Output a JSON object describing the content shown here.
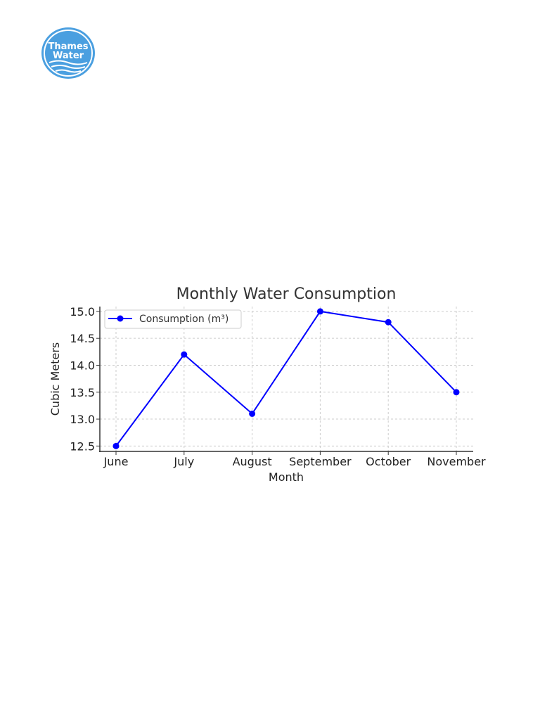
{
  "logo": {
    "line1": "Thames",
    "line2": "Water",
    "color": "#4a9fe0"
  },
  "chart_data": {
    "type": "line",
    "title": "Monthly Water Consumption",
    "xlabel": "Month",
    "ylabel": "Cubic Meters",
    "categories": [
      "June",
      "July",
      "August",
      "September",
      "October",
      "November"
    ],
    "series": [
      {
        "name": "Consumption (m³)",
        "values": [
          12.5,
          14.2,
          13.1,
          15.0,
          14.8,
          13.5
        ],
        "color": "#0000ff"
      }
    ],
    "ylim": [
      12.4,
      15.09
    ],
    "yticks": [
      12.5,
      13.0,
      13.5,
      14.0,
      14.5,
      15.0
    ],
    "ytick_labels": [
      "12.5",
      "13.0",
      "13.5",
      "14.0",
      "14.5",
      "15.0"
    ],
    "grid": true,
    "legend": "top-left",
    "marker": "circle"
  }
}
